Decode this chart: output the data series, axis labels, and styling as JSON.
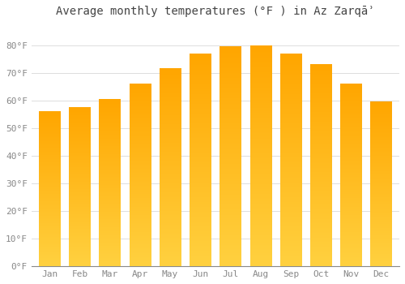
{
  "title": "Average monthly temperatures (°F ) in Az Zarqāʾ",
  "months": [
    "Jan",
    "Feb",
    "Mar",
    "Apr",
    "May",
    "Jun",
    "Jul",
    "Aug",
    "Sep",
    "Oct",
    "Nov",
    "Dec"
  ],
  "values": [
    56,
    57.5,
    60.5,
    66,
    71.5,
    77,
    79.5,
    80,
    77,
    73,
    66,
    59.5
  ],
  "bar_color": "#FFA500",
  "bar_gradient_top": "#FFB300",
  "bar_gradient_bottom": "#FFD040",
  "bar_edge_color": "#E08000",
  "background_color": "#FFFFFF",
  "grid_color": "#DDDDDD",
  "ylim": [
    0,
    88
  ],
  "yticks": [
    0,
    10,
    20,
    30,
    40,
    50,
    60,
    70,
    80
  ],
  "ytick_labels": [
    "0°F",
    "10°F",
    "20°F",
    "30°F",
    "40°F",
    "50°F",
    "60°F",
    "70°F",
    "80°F"
  ],
  "title_fontsize": 10,
  "tick_fontsize": 8,
  "font_family": "monospace",
  "tick_color": "#888888",
  "bar_width": 0.75
}
